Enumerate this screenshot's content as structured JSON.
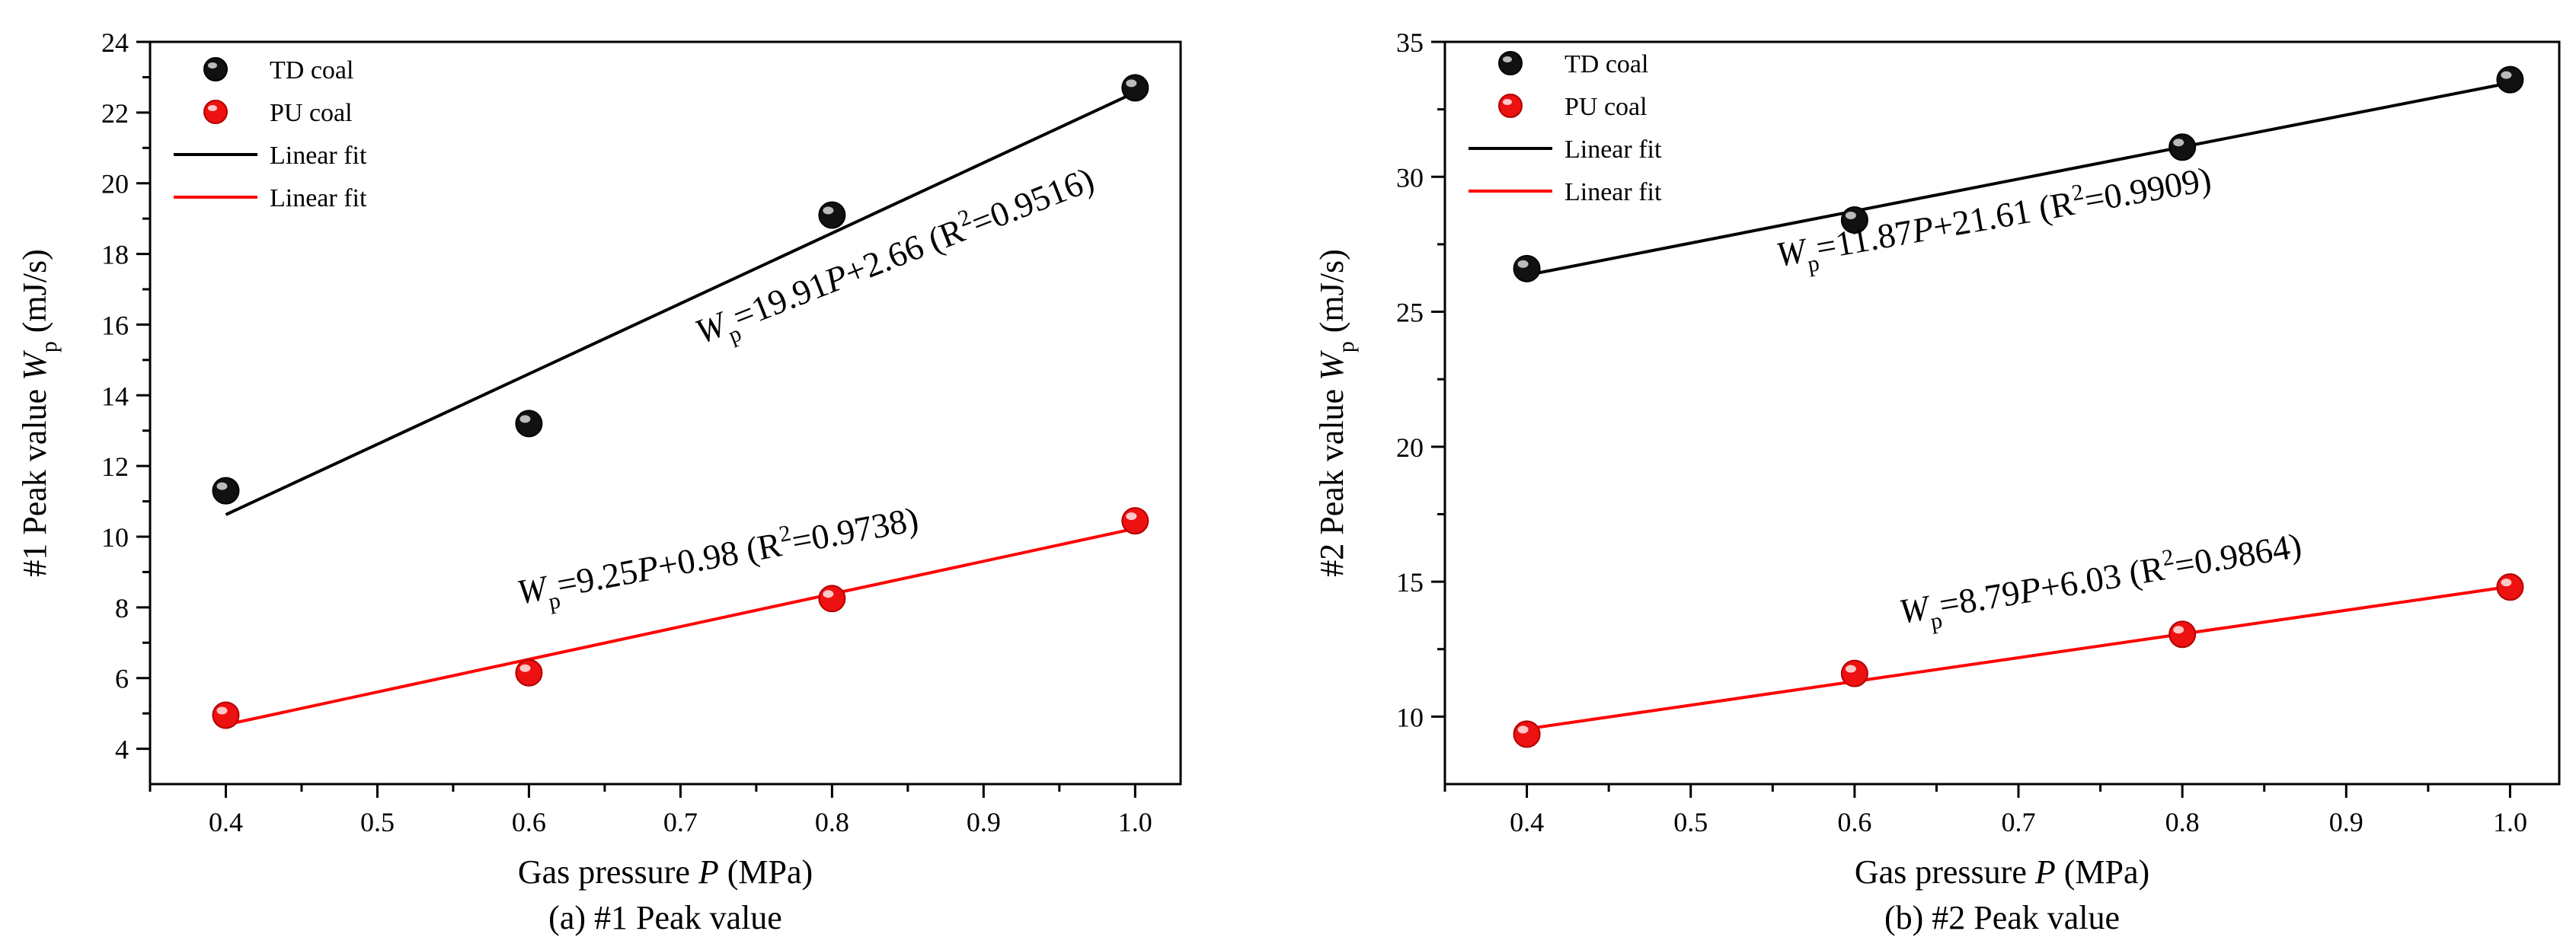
{
  "chart_data": [
    {
      "type": "scatter",
      "panel": "a",
      "caption": "(a) #1 Peak value",
      "xlabel": "Gas pressure P (MPa)",
      "ylabel": "#1 Peak value W_p (mJ/s)",
      "xlim": [
        0.35,
        1.03
      ],
      "ylim": [
        3,
        24
      ],
      "xticks": [
        0.4,
        0.5,
        0.6,
        0.7,
        0.8,
        0.9,
        1.0
      ],
      "xtick_labels": [
        "0.4",
        "0.5",
        "0.6",
        "0.7",
        "0.8",
        "0.9",
        "1.0"
      ],
      "yticks": [
        4,
        6,
        8,
        10,
        12,
        14,
        16,
        18,
        20,
        22,
        24
      ],
      "ytick_labels": [
        "4",
        "6",
        "8",
        "10",
        "12",
        "14",
        "16",
        "18",
        "20",
        "22",
        "24"
      ],
      "legend_position": "top-left",
      "series": [
        {
          "name": "TD coal",
          "color": "#000000",
          "x": [
            0.4,
            0.6,
            0.8,
            1.0
          ],
          "y": [
            11.3,
            13.2,
            19.1,
            22.7
          ],
          "fit": {
            "label": "Linear fit",
            "slope": 19.91,
            "intercept": 2.66,
            "eq": {
              "lhs": "W",
              "sub": "p",
              "mid": "=19.91",
              "var": "P",
              "rest": "+2.66 (R",
              "sup": "2",
              "end": "=0.9516)"
            }
          }
        },
        {
          "name": "PU coal",
          "color": "#ff0000",
          "x": [
            0.4,
            0.6,
            0.8,
            1.0
          ],
          "y": [
            4.95,
            6.15,
            8.25,
            10.45
          ],
          "fit": {
            "label": "Linear fit",
            "slope": 9.25,
            "intercept": 0.98,
            "eq": {
              "lhs": "W",
              "sub": "p",
              "mid": "=9.25",
              "var": "P",
              "rest": "+0.98 (R",
              "sup": "2",
              "end": "=0.9738)"
            }
          }
        }
      ]
    },
    {
      "type": "scatter",
      "panel": "b",
      "caption": "(b) #2 Peak value",
      "xlabel": "Gas pressure P (MPa)",
      "ylabel": "#2 Peak value W_p (mJ/s)",
      "xlim": [
        0.35,
        1.03
      ],
      "ylim": [
        7.5,
        35
      ],
      "xticks": [
        0.4,
        0.5,
        0.6,
        0.7,
        0.8,
        0.9,
        1.0
      ],
      "xtick_labels": [
        "0.4",
        "0.5",
        "0.6",
        "0.7",
        "0.8",
        "0.9",
        "1.0"
      ],
      "yticks": [
        10,
        15,
        20,
        25,
        30,
        35
      ],
      "ytick_labels": [
        "10",
        "15",
        "20",
        "25",
        "30",
        "35"
      ],
      "legend_position": "top-left",
      "series": [
        {
          "name": "TD coal",
          "color": "#000000",
          "x": [
            0.4,
            0.6,
            0.8,
            1.0
          ],
          "y": [
            26.6,
            28.4,
            31.1,
            33.6
          ],
          "fit": {
            "label": "Linear fit",
            "slope": 11.87,
            "intercept": 21.61,
            "eq": {
              "lhs": "W",
              "sub": "p",
              "mid": "=11.87",
              "var": "P",
              "rest": "+21.61 (R",
              "sup": "2",
              "end": "=0.9909)"
            }
          }
        },
        {
          "name": "PU coal",
          "color": "#ff0000",
          "x": [
            0.4,
            0.6,
            0.8,
            1.0
          ],
          "y": [
            9.35,
            11.6,
            13.05,
            14.8
          ],
          "fit": {
            "label": "Linear fit",
            "slope": 8.79,
            "intercept": 6.03,
            "eq": {
              "lhs": "W",
              "sub": "p",
              "mid": "=8.79",
              "var": "P",
              "rest": "+6.03 (R",
              "sup": "2",
              "end": "=0.9864)"
            }
          }
        }
      ]
    }
  ]
}
